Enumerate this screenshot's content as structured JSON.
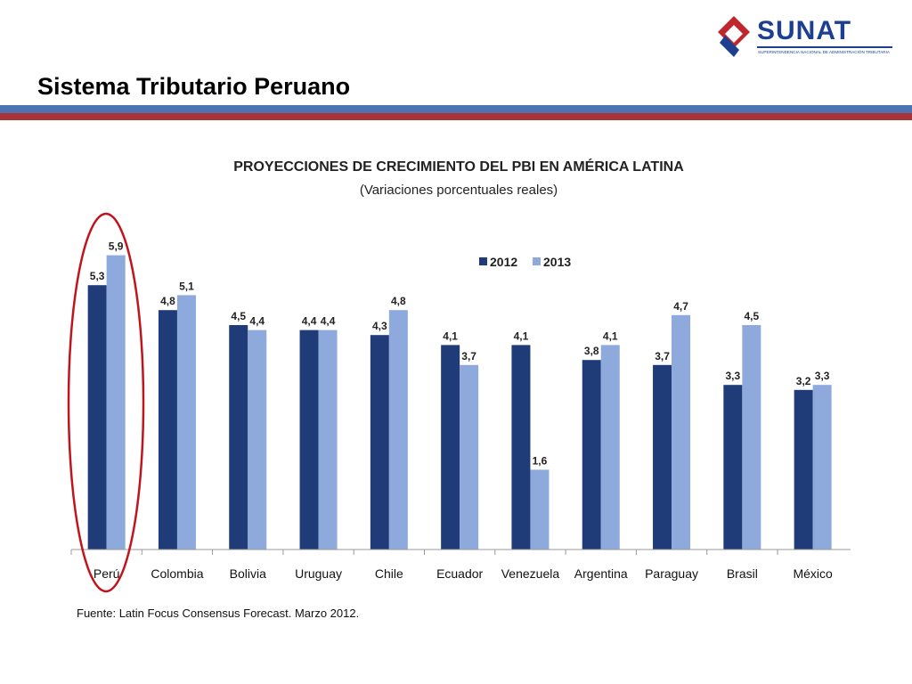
{
  "slide": {
    "title": "Sistema Tributario Peruano"
  },
  "logo": {
    "name": "SUNAT",
    "subtitle": "SUPERINTENDENCIA NACIONAL DE ADMINISTRACIÓN TRIBUTARIA"
  },
  "colors": {
    "series_2012": "#1f3c78",
    "series_2013": "#8ea9dc",
    "band_blue": "#4d73b3",
    "band_red": "#a8343a",
    "highlight_ellipse": "#c0151d"
  },
  "chart_data": {
    "type": "bar",
    "title": "PROYECCIONES DE CRECIMIENTO DEL PBI EN AMÉRICA LATINA",
    "subtitle": "(Variaciones porcentuales reales)",
    "categories": [
      "Perú",
      "Colombia",
      "Bolivia",
      "Uruguay",
      "Chile",
      "Ecuador",
      "Venezuela",
      "Argentina",
      "Paraguay",
      "Brasil",
      "México"
    ],
    "series": [
      {
        "name": "2012",
        "values": [
          5.3,
          4.8,
          4.5,
          4.4,
          4.3,
          4.1,
          4.1,
          3.8,
          3.7,
          3.3,
          3.2
        ],
        "labels": [
          "5,3",
          "4,8",
          "4,5",
          "4,4",
          "4,3",
          "4,1",
          "4,1",
          "3,8",
          "3,7",
          "3,3",
          "3,2"
        ]
      },
      {
        "name": "2013",
        "values": [
          5.9,
          5.1,
          4.4,
          4.4,
          4.8,
          3.7,
          1.6,
          4.1,
          4.7,
          4.5,
          3.3
        ],
        "labels": [
          "5,9",
          "5,1",
          "4,4",
          "4,4",
          "4,8",
          "3,7",
          "1,6",
          "4,1",
          "4,7",
          "4,5",
          "3,3"
        ]
      }
    ],
    "ylim": [
      0,
      6.2
    ],
    "grid": false,
    "legend_position": "top-right",
    "highlighted_category": "Perú",
    "source": "Fuente: Latin Focus Consensus Forecast. Marzo 2012."
  }
}
